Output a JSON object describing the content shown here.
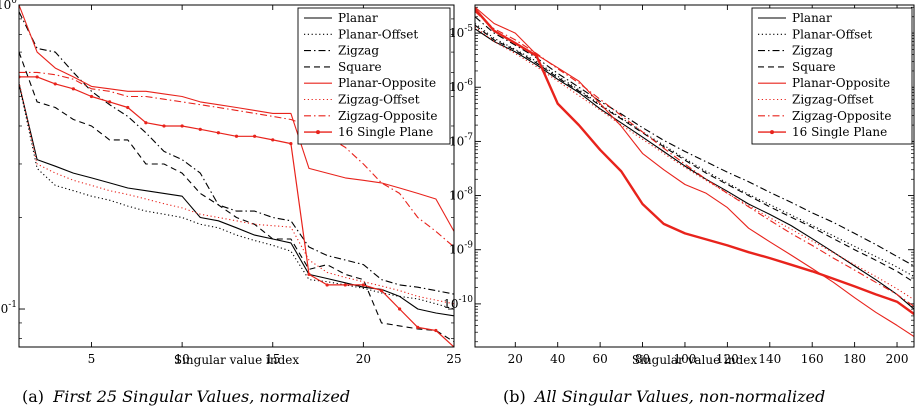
{
  "captions": [
    {
      "label": "(a)",
      "text": "First 25 Singular Values, normalized"
    },
    {
      "label": "(b)",
      "text": "All Singular Values, non-normalized"
    }
  ],
  "chart_data": [
    {
      "type": "line",
      "xlabel": "Singular value index",
      "ylabel": "",
      "xlim": [
        1,
        25
      ],
      "ylim": [
        0.075,
        1.0
      ],
      "yscale": "log",
      "x_ticks": [
        5,
        10,
        15,
        20,
        25
      ],
      "y_ticks": [
        {
          "value": 1,
          "label": "10^0"
        },
        {
          "value": 0.1,
          "label": "10^-1"
        }
      ],
      "legend_position": "top-right",
      "x": [
        1,
        2,
        3,
        4,
        5,
        6,
        7,
        8,
        9,
        10,
        11,
        12,
        13,
        14,
        15,
        16,
        17,
        18,
        19,
        20,
        21,
        22,
        23,
        24,
        25
      ],
      "series": [
        {
          "name": "Planar",
          "color": "#000000",
          "dash": "solid",
          "values": [
            0.55,
            0.31,
            0.295,
            0.28,
            0.27,
            0.26,
            0.25,
            0.245,
            0.24,
            0.235,
            0.2,
            0.195,
            0.185,
            0.175,
            0.17,
            0.165,
            0.13,
            0.126,
            0.122,
            0.118,
            0.116,
            0.11,
            0.1,
            0.097,
            0.095
          ]
        },
        {
          "name": "Planar-Offset",
          "color": "#000000",
          "dash": "dot",
          "values": [
            0.55,
            0.29,
            0.255,
            0.245,
            0.235,
            0.228,
            0.218,
            0.21,
            0.205,
            0.2,
            0.19,
            0.185,
            0.175,
            0.168,
            0.162,
            0.155,
            0.125,
            0.123,
            0.12,
            0.117,
            0.113,
            0.11,
            0.108,
            0.104,
            0.1
          ]
        },
        {
          "name": "Zigzag",
          "color": "#000000",
          "dash": "dashdot",
          "values": [
            0.95,
            0.72,
            0.7,
            0.6,
            0.52,
            0.47,
            0.43,
            0.38,
            0.33,
            0.31,
            0.28,
            0.22,
            0.21,
            0.21,
            0.2,
            0.195,
            0.16,
            0.15,
            0.145,
            0.14,
            0.125,
            0.12,
            0.118,
            0.115,
            0.112
          ]
        },
        {
          "name": "Square",
          "color": "#000000",
          "dash": "dash",
          "values": [
            0.7,
            0.48,
            0.46,
            0.42,
            0.4,
            0.36,
            0.36,
            0.3,
            0.3,
            0.28,
            0.24,
            0.22,
            0.2,
            0.19,
            0.17,
            0.17,
            0.135,
            0.14,
            0.13,
            0.125,
            0.09,
            0.088,
            0.086,
            0.085,
            0.078
          ]
        },
        {
          "name": "Planar-Opposite",
          "color": "#e8231c",
          "dash": "solid",
          "values": [
            1.0,
            0.7,
            0.62,
            0.58,
            0.54,
            0.53,
            0.52,
            0.52,
            0.51,
            0.5,
            0.48,
            0.47,
            0.46,
            0.45,
            0.44,
            0.44,
            0.29,
            0.28,
            0.27,
            0.265,
            0.26,
            0.25,
            0.24,
            0.23,
            0.18
          ]
        },
        {
          "name": "Zigzag-Offset",
          "color": "#e8231c",
          "dash": "dot",
          "values": [
            0.56,
            0.3,
            0.28,
            0.265,
            0.255,
            0.245,
            0.238,
            0.23,
            0.222,
            0.215,
            0.205,
            0.2,
            0.195,
            0.19,
            0.188,
            0.186,
            0.145,
            0.132,
            0.127,
            0.123,
            0.119,
            0.115,
            0.11,
            0.107,
            0.104
          ]
        },
        {
          "name": "Zigzag-Opposite",
          "color": "#e8231c",
          "dash": "dashdot",
          "values": [
            0.6,
            0.6,
            0.59,
            0.57,
            0.53,
            0.52,
            0.5,
            0.5,
            0.49,
            0.48,
            0.47,
            0.46,
            0.45,
            0.44,
            0.43,
            0.42,
            0.4,
            0.37,
            0.34,
            0.3,
            0.26,
            0.24,
            0.2,
            0.18,
            0.16
          ]
        },
        {
          "name": "16 Single Plane",
          "color": "#e8231c",
          "dash": "solid",
          "marker": true,
          "values": [
            0.58,
            0.58,
            0.55,
            0.53,
            0.5,
            0.48,
            0.46,
            0.41,
            0.4,
            0.4,
            0.39,
            0.38,
            0.37,
            0.37,
            0.36,
            0.35,
            0.13,
            0.12,
            0.12,
            0.12,
            0.115,
            0.1,
            0.087,
            0.085,
            0.075
          ]
        }
      ]
    },
    {
      "type": "line",
      "xlabel": "Singular value index",
      "ylabel": "",
      "xlim": [
        1,
        208
      ],
      "ylim": [
        1.6e-11,
        3.3e-05
      ],
      "yscale": "log",
      "x_ticks": [
        20,
        40,
        60,
        80,
        100,
        120,
        140,
        160,
        180,
        200
      ],
      "y_ticks": [
        {
          "value": 1e-05,
          "label": "10^-5"
        },
        {
          "value": 1e-06,
          "label": "10^-6"
        },
        {
          "value": 1e-07,
          "label": "10^-7"
        },
        {
          "value": 1e-08,
          "label": "10^-8"
        },
        {
          "value": 1e-09,
          "label": "10^-9"
        },
        {
          "value": 1e-10,
          "label": "10^-10"
        }
      ],
      "legend_position": "top-right",
      "x": [
        1,
        10,
        20,
        30,
        40,
        50,
        60,
        70,
        80,
        90,
        100,
        110,
        120,
        130,
        140,
        150,
        160,
        170,
        180,
        190,
        200,
        208
      ],
      "series": [
        {
          "name": "Planar",
          "color": "#000000",
          "dash": "solid",
          "values": [
            1.2e-05,
            7e-06,
            4.5e-06,
            2.6e-06,
            1.4e-06,
            8e-07,
            4e-07,
            2.2e-07,
            1.2e-07,
            6.5e-08,
            3.5e-08,
            2e-08,
            1.2e-08,
            7e-09,
            4.5e-09,
            2.8e-09,
            1.6e-09,
            9e-10,
            5e-10,
            2.8e-10,
            1.5e-10,
            8e-11
          ]
        },
        {
          "name": "Planar-Offset",
          "color": "#000000",
          "dash": "dot",
          "values": [
            1.5e-05,
            8e-06,
            5e-06,
            3e-06,
            1.6e-06,
            9e-07,
            4.8e-07,
            2.7e-07,
            1.5e-07,
            8.5e-08,
            4.8e-08,
            2.8e-08,
            1.7e-08,
            1.05e-08,
            6.8e-09,
            4.4e-09,
            2.8e-09,
            1.8e-09,
            1.15e-09,
            7.5e-10,
            4.8e-10,
            3.2e-10
          ]
        },
        {
          "name": "Zigzag",
          "color": "#000000",
          "dash": "dashdot",
          "values": [
            2e-05,
            1e-05,
            6e-06,
            3.5e-06,
            1.8e-06,
            1e-06,
            5.5e-07,
            3.2e-07,
            1.8e-07,
            1.05e-07,
            6.5e-08,
            4.2e-08,
            2.7e-08,
            1.8e-08,
            1.15e-08,
            7.5e-09,
            4.8e-09,
            3.2e-09,
            2e-09,
            1.25e-09,
            7.5e-10,
            5e-10
          ]
        },
        {
          "name": "Square",
          "color": "#000000",
          "dash": "dash",
          "values": [
            1.4e-05,
            7.5e-06,
            4.8e-06,
            2.8e-06,
            1.5e-06,
            8.5e-07,
            4.6e-07,
            2.6e-07,
            1.45e-07,
            8e-08,
            4.5e-08,
            2.6e-08,
            1.6e-08,
            1e-08,
            6.2e-09,
            4e-09,
            2.6e-09,
            1.6e-09,
            1e-09,
            6.4e-10,
            4e-10,
            2.5e-10
          ]
        },
        {
          "name": "Planar-Opposite",
          "color": "#e8231c",
          "dash": "solid",
          "values": [
            3e-05,
            1.5e-05,
            1e-05,
            4e-06,
            2.3e-06,
            1.3e-06,
            5e-07,
            1.9e-07,
            6e-08,
            3e-08,
            1.6e-08,
            1.1e-08,
            6e-09,
            2.5e-09,
            1.4e-09,
            8e-10,
            4.5e-10,
            2.5e-10,
            1.3e-10,
            7e-11,
            4e-11,
            2.5e-11
          ]
        },
        {
          "name": "Zigzag-Offset",
          "color": "#e8231c",
          "dash": "dot",
          "values": [
            1.3e-05,
            7e-06,
            4.2e-06,
            2.4e-06,
            1.3e-06,
            7e-07,
            3.8e-07,
            2e-07,
            1.1e-07,
            6e-08,
            3.3e-08,
            1.9e-08,
            1.1e-08,
            6.5e-09,
            3.9e-09,
            2.4e-09,
            1.45e-09,
            8.8e-10,
            5.3e-10,
            3.2e-10,
            1.9e-10,
            1.2e-10
          ]
        },
        {
          "name": "Zigzag-Opposite",
          "color": "#e8231c",
          "dash": "dashdot",
          "values": [
            2.5e-05,
            1.2e-05,
            7.5e-06,
            4.2e-06,
            2.2e-06,
            1.2e-06,
            6e-07,
            3e-07,
            1.5e-07,
            7.5e-08,
            3.8e-08,
            2e-08,
            1.1e-08,
            6.2e-09,
            3.5e-09,
            2e-09,
            1.2e-09,
            7e-10,
            4.2e-10,
            2.5e-10,
            1.5e-10,
            9e-11
          ]
        },
        {
          "name": "16 Single Plane",
          "color": "#e8231c",
          "dash": "solid",
          "marker": true,
          "values": [
            2.8e-05,
            1.1e-05,
            6.5e-06,
            3.8e-06,
            5e-07,
            2e-07,
            7e-08,
            2.8e-08,
            7e-09,
            3e-09,
            2e-09,
            1.55e-09,
            1.2e-09,
            9e-10,
            7e-10,
            5.3e-10,
            4e-10,
            2.9e-10,
            2.1e-10,
            1.5e-10,
            1.1e-10,
            6.5e-11
          ]
        }
      ]
    }
  ]
}
